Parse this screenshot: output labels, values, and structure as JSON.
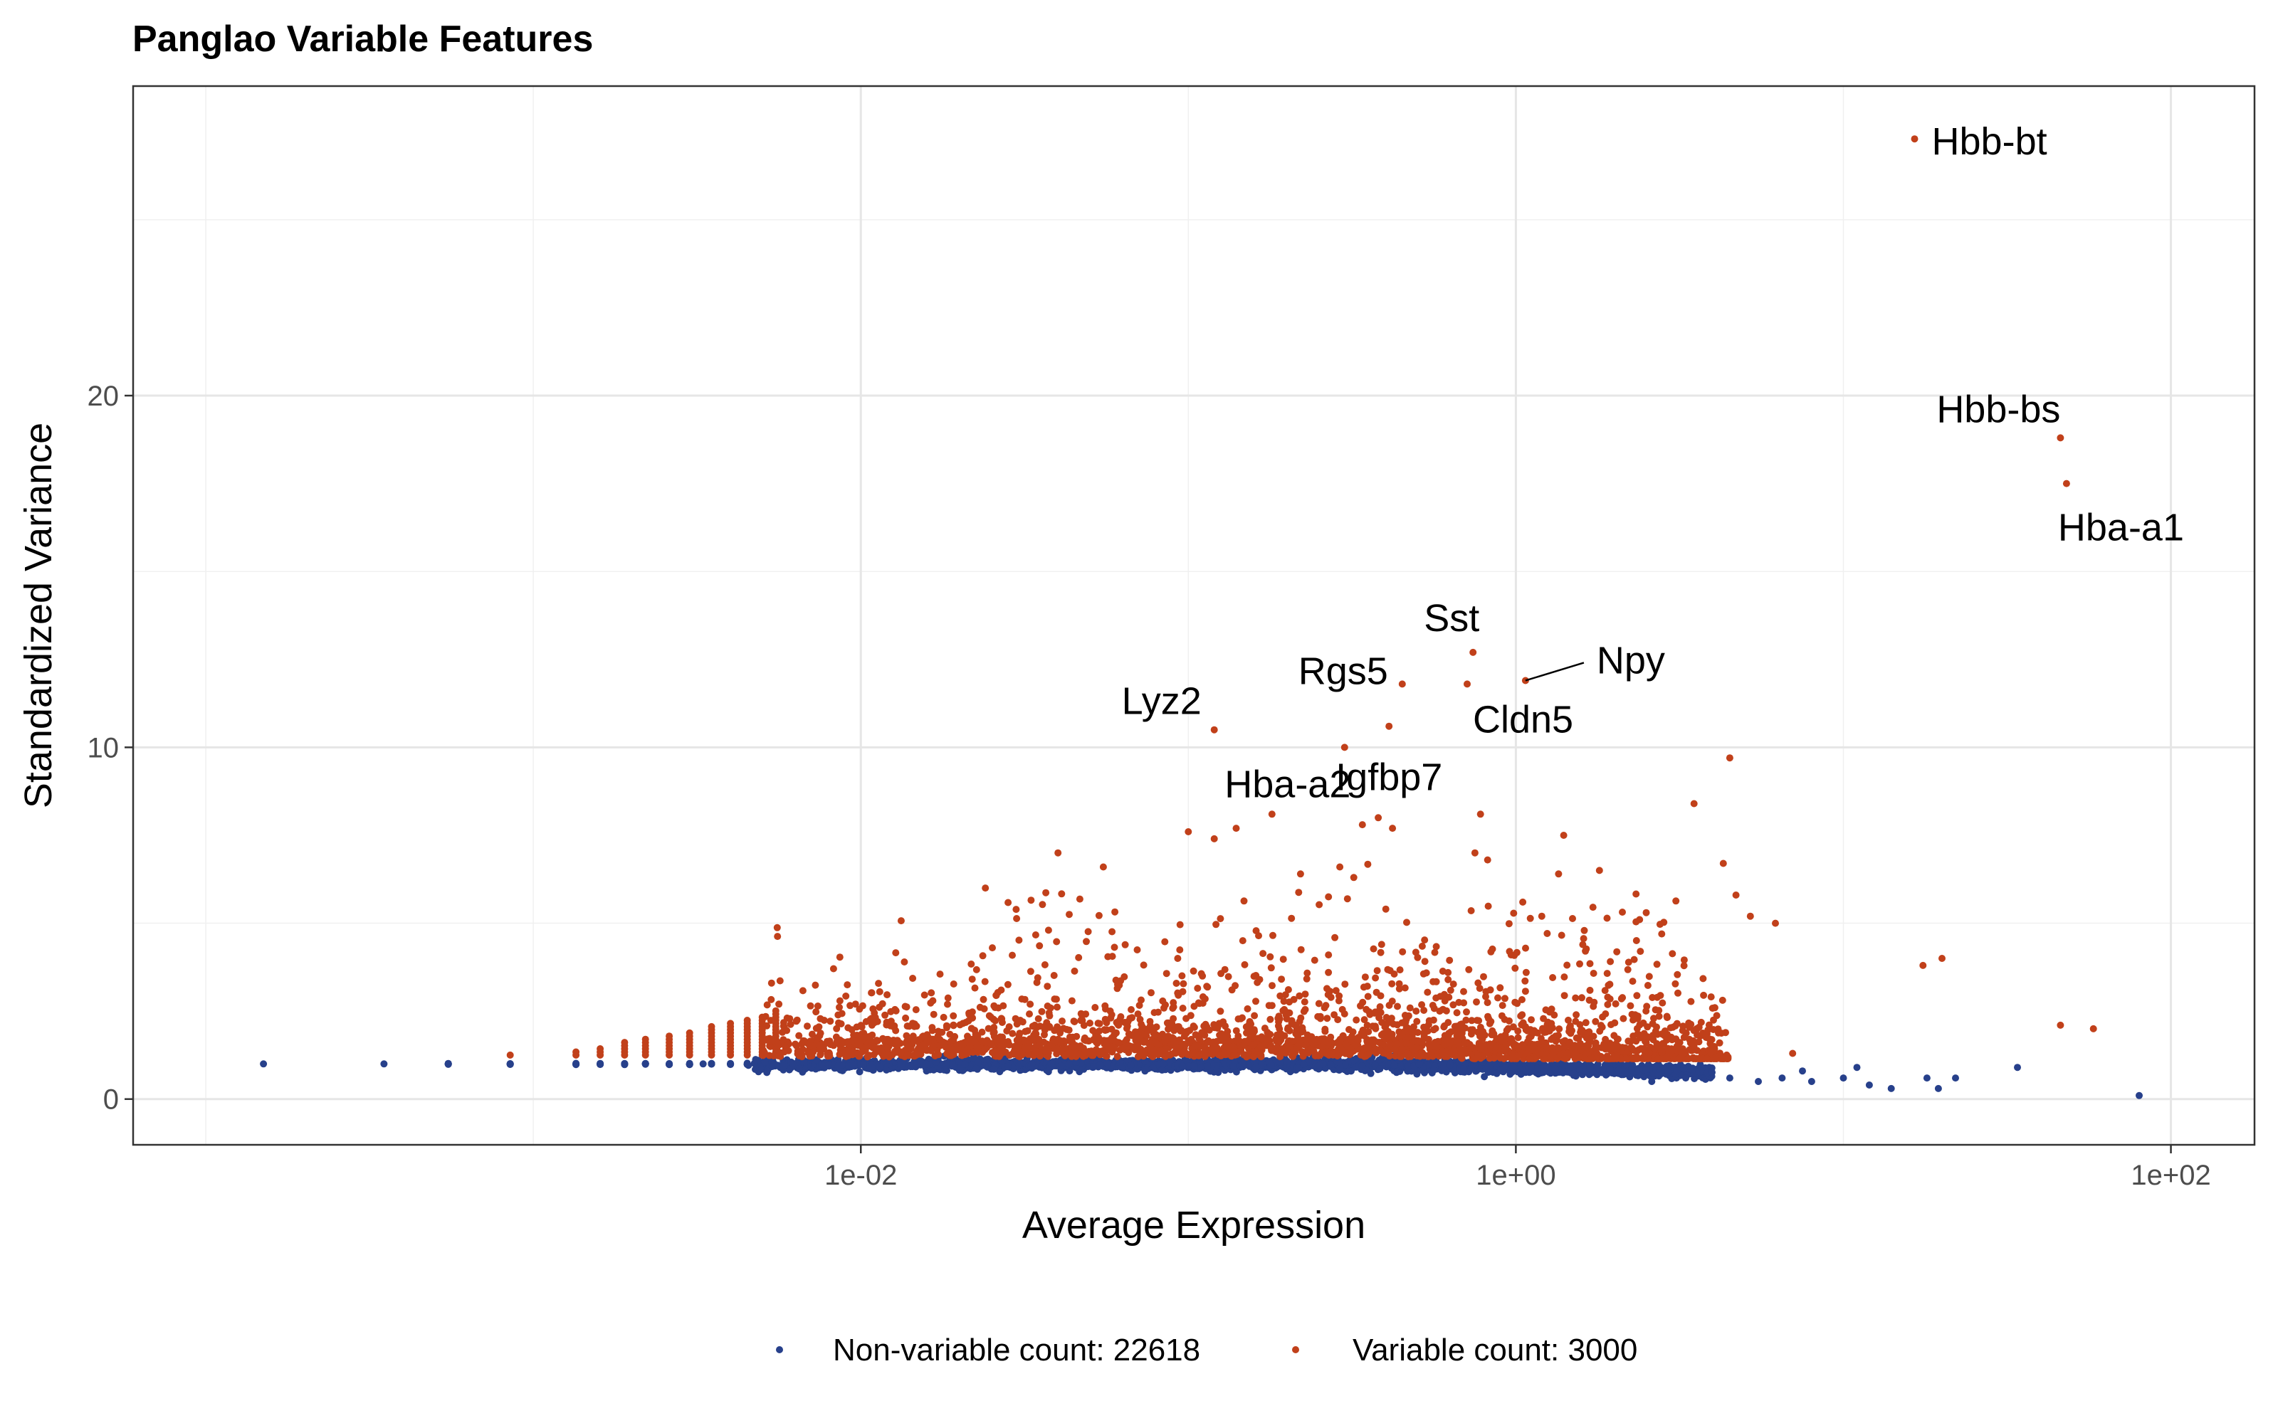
{
  "chart_data": {
    "type": "scatter",
    "title": "Panglao Variable Features",
    "xlabel": "Average Expression",
    "ylabel": "Standardized Variance",
    "x_scale": "log10",
    "xlim": [
      6e-05,
      180
    ],
    "ylim": [
      -1.3,
      28.8
    ],
    "x_ticks": [
      0.01,
      1,
      100
    ],
    "x_tick_labels": [
      "1e-02",
      "1e+00",
      "1e+02"
    ],
    "y_ticks": [
      0,
      10,
      20
    ],
    "y_tick_labels": [
      "0",
      "10",
      "20"
    ],
    "grid": true,
    "legend_position": "bottom",
    "series": [
      {
        "name": "Non-variable count: 22618",
        "color": "#27408B",
        "seed": 17,
        "count": 2400,
        "points": [
          [
            0.00015,
            1.0
          ],
          [
            0.00035,
            1.0
          ],
          [
            0.00055,
            1.0
          ],
          [
            0.00085,
            1.0
          ],
          [
            0.00135,
            1.0
          ],
          [
            0.0022,
            1.0
          ],
          [
            0.0033,
            1.0
          ],
          [
            4.5,
            0.6
          ],
          [
            5.5,
            0.5
          ],
          [
            6.5,
            0.6
          ],
          [
            7.5,
            0.8
          ],
          [
            8.0,
            0.5
          ],
          [
            10.0,
            0.6
          ],
          [
            11.0,
            0.9
          ],
          [
            12.0,
            0.4
          ],
          [
            14.0,
            0.3
          ],
          [
            18.0,
            0.6
          ],
          [
            19.5,
            0.3
          ],
          [
            22.0,
            0.6
          ],
          [
            34.0,
            0.9
          ],
          [
            80.0,
            0.1
          ],
          [
            2.6,
            0.5
          ],
          [
            3.3,
            0.6
          ]
        ]
      },
      {
        "name": "Variable count: 3000",
        "color": "#C1401A",
        "seed": 29,
        "count": 2600,
        "points": [
          [
            16.5,
            27.3
          ],
          [
            46.0,
            18.8
          ],
          [
            48.0,
            17.5
          ],
          [
            0.12,
            10.5
          ],
          [
            0.3,
            10.0
          ],
          [
            0.45,
            11.8
          ],
          [
            0.74,
            12.7
          ],
          [
            0.71,
            11.8
          ],
          [
            1.07,
            11.9
          ],
          [
            0.41,
            10.6
          ],
          [
            4.5,
            9.7
          ],
          [
            3.5,
            8.4
          ],
          [
            0.34,
            7.8
          ],
          [
            0.38,
            8.0
          ],
          [
            0.42,
            7.7
          ],
          [
            0.1,
            7.6
          ],
          [
            0.12,
            7.4
          ],
          [
            0.14,
            7.7
          ],
          [
            0.18,
            8.1
          ],
          [
            0.78,
            8.1
          ],
          [
            1.4,
            7.5
          ],
          [
            0.75,
            7.0
          ],
          [
            0.82,
            6.8
          ],
          [
            0.04,
            7.0
          ],
          [
            0.055,
            6.6
          ],
          [
            0.29,
            6.6
          ],
          [
            0.32,
            6.3
          ],
          [
            0.22,
            6.4
          ],
          [
            2.5,
            5.3
          ],
          [
            4.3,
            6.7
          ],
          [
            4.7,
            5.8
          ],
          [
            1.35,
            6.4
          ],
          [
            1.8,
            6.5
          ],
          [
            5.2,
            5.2
          ],
          [
            6.2,
            5.0
          ],
          [
            1.05,
            5.6
          ],
          [
            2.4,
            4.2
          ],
          [
            17.5,
            3.8
          ],
          [
            20.0,
            4.0
          ],
          [
            46.0,
            2.1
          ],
          [
            58.0,
            2.0
          ],
          [
            0.024,
            6.0
          ],
          [
            7.0,
            1.3
          ],
          [
            1.2,
            5.2
          ]
        ]
      }
    ],
    "annotations": [
      {
        "text": "Hbb-bt",
        "x": 16.5,
        "y": 27.3
      },
      {
        "text": "Hbb-bs",
        "x": 46.0,
        "y": 18.8
      },
      {
        "text": "Hba-a1",
        "x": 48.0,
        "y": 17.5
      },
      {
        "text": "Sst",
        "x": 0.74,
        "y": 12.7
      },
      {
        "text": "Npy",
        "x": 1.07,
        "y": 11.9
      },
      {
        "text": "Rgs5",
        "x": 0.45,
        "y": 11.8
      },
      {
        "text": "Cldn5",
        "x": 0.71,
        "y": 11.8
      },
      {
        "text": "Lyz2",
        "x": 0.12,
        "y": 10.5
      },
      {
        "text": "Hba-a2",
        "x": 0.3,
        "y": 10.0
      },
      {
        "text": "Igfbp7",
        "x": 0.41,
        "y": 10.6
      }
    ]
  }
}
